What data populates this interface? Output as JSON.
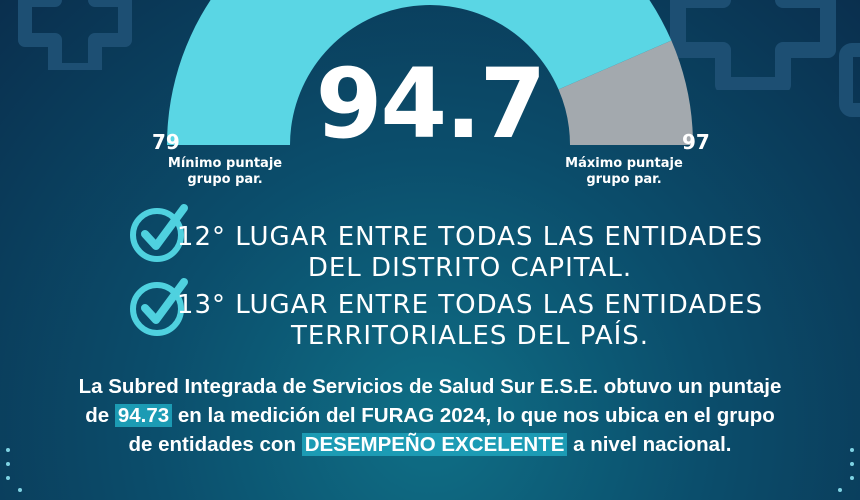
{
  "gauge": {
    "score": "94.7",
    "min_value": "79",
    "max_value": "97",
    "min_caption": "Mínimo puntaje grupo par.",
    "max_caption": "Máximo puntaje grupo par.",
    "fill_fraction": 0.87,
    "colors": {
      "fill": "#5ad6e4",
      "remaining": "#a3a9ae",
      "marker": "#f2c94c"
    }
  },
  "rankings": [
    {
      "line1": "12° LUGAR ENTRE TODAS LAS ENTIDADES",
      "line2": "DEL DISTRITO CAPITAL."
    },
    {
      "line1": "13° LUGAR ENTRE TODAS LAS ENTIDADES",
      "line2": "TERRITORIALES DEL PAÍS."
    }
  ],
  "summary": {
    "part1": "La Subred Integrada de Servicios de Salud Sur E.S.E. obtuvo un puntaje",
    "part2": "de",
    "score": "94.73",
    "part3": "en la medición del FURAG 2024, lo que nos ubica en el grupo",
    "part4": "de entidades con",
    "highlight": "DESEMPEÑO EXCELENTE",
    "part5": "a nivel nacional."
  },
  "colors": {
    "accent": "#4fd1df",
    "highlight_bg": "#1c9bb4"
  },
  "icons": [
    "cross-icon",
    "check-circle-icon"
  ]
}
